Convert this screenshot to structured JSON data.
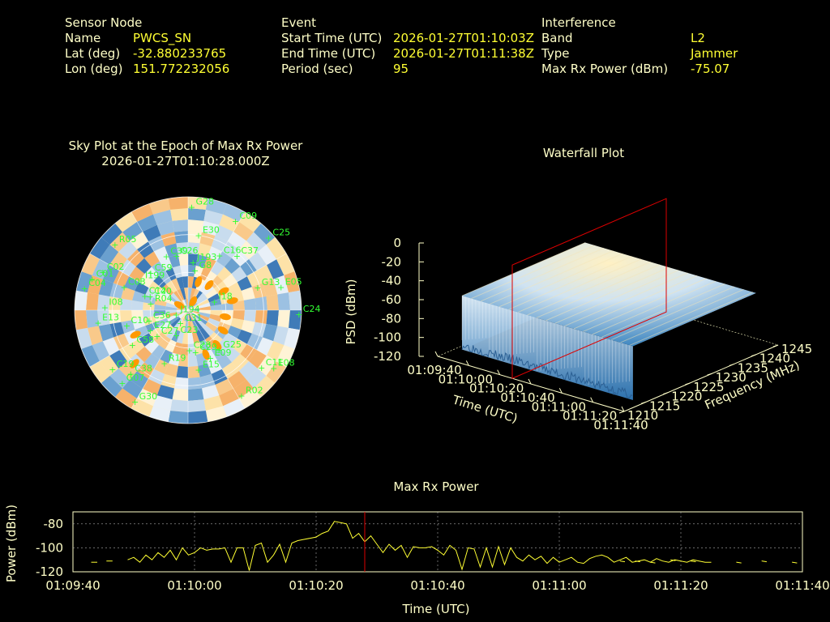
{
  "header": {
    "sensor": {
      "title": "Sensor Node",
      "name_label": "Name",
      "name": "PWCS_SN",
      "lat_label": "Lat (deg)",
      "lat": "-32.880233765",
      "lon_label": "Lon (deg)",
      "lon": "151.772232056"
    },
    "event": {
      "title": "Event",
      "start_label": "Start Time (UTC)",
      "start": "2026-01-27T01:10:03Z",
      "end_label": "End Time (UTC)",
      "end": "2026-01-27T01:11:38Z",
      "period_label": "Period (sec)",
      "period": "95"
    },
    "interference": {
      "title": "Interference",
      "band_label": "Band",
      "band": "L2",
      "type_label": "Type",
      "type": "Jammer",
      "power_label": "Max Rx Power (dBm)",
      "power": "-75.07"
    }
  },
  "colors": {
    "text": "#ffffc8",
    "value": "#ffff33",
    "satellite": "#33ff33",
    "jammer": "#ff9900",
    "marker": "#dd0000",
    "trace": "#ffff33"
  },
  "chart_data": [
    {
      "type": "scatter",
      "title": "Sky Plot at the Epoch of Max Rx Power",
      "subtitle": "2026-01-27T01:10:28.000Z",
      "satellites": [
        {
          "id": "G28",
          "az": 2,
          "el": 8
        },
        {
          "id": "C09",
          "az": 28,
          "el": 10
        },
        {
          "id": "C25",
          "az": 48,
          "el": 4
        },
        {
          "id": "E30",
          "az": 8,
          "el": 30
        },
        {
          "id": "C16",
          "az": 30,
          "el": 40
        },
        {
          "id": "C37",
          "az": 42,
          "el": 32
        },
        {
          "id": "G13",
          "az": 72,
          "el": 32
        },
        {
          "id": "E05",
          "az": 76,
          "el": 14
        },
        {
          "id": "C24",
          "az": 92,
          "el": 2
        },
        {
          "id": "C26",
          "az": 348,
          "el": 46
        },
        {
          "id": "C39",
          "az": 338,
          "el": 44
        },
        {
          "id": "C59",
          "az": 315,
          "el": 48
        },
        {
          "id": "J193",
          "az": 6,
          "el": 52
        },
        {
          "id": "G8",
          "az": 10,
          "el": 58
        },
        {
          "id": "I18",
          "az": 72,
          "el": 68
        },
        {
          "id": "J194",
          "az": 250,
          "el": 80
        },
        {
          "id": "C31",
          "az": 210,
          "el": 78
        },
        {
          "id": "C36",
          "az": 255,
          "el": 58
        },
        {
          "id": "C40",
          "az": 290,
          "el": 58
        },
        {
          "id": "R04",
          "az": 280,
          "el": 60
        },
        {
          "id": "C12",
          "az": 288,
          "el": 54
        },
        {
          "id": "R05",
          "az": 312,
          "el": 12
        },
        {
          "id": "C03",
          "az": 290,
          "el": 36
        },
        {
          "id": "C01",
          "az": 288,
          "el": 10
        },
        {
          "id": "C02",
          "az": 294,
          "el": 16
        },
        {
          "id": "C04",
          "az": 282,
          "el": 6
        },
        {
          "id": "I199",
          "az": 302,
          "el": 46
        },
        {
          "id": "I08",
          "az": 272,
          "el": 24
        },
        {
          "id": "E13",
          "az": 262,
          "el": 18
        },
        {
          "id": "C10",
          "az": 256,
          "el": 40
        },
        {
          "id": "E27",
          "az": 242,
          "el": 56
        },
        {
          "id": "C27",
          "az": 230,
          "el": 58
        },
        {
          "id": "C23",
          "az": 205,
          "el": 68
        },
        {
          "id": "R19",
          "az": 204,
          "el": 44
        },
        {
          "id": "C58",
          "az": 238,
          "el": 38
        },
        {
          "id": "C38",
          "az": 222,
          "el": 22
        },
        {
          "id": "C19",
          "az": 232,
          "el": 14
        },
        {
          "id": "G07",
          "az": 222,
          "el": 12
        },
        {
          "id": "G30",
          "az": 210,
          "el": 6
        },
        {
          "id": "C28",
          "az": 178,
          "el": 58
        },
        {
          "id": "C29",
          "az": 170,
          "el": 56
        },
        {
          "id": "E15",
          "az": 170,
          "el": 42
        },
        {
          "id": "E09",
          "az": 155,
          "el": 48
        },
        {
          "id": "G25",
          "az": 142,
          "el": 50
        },
        {
          "id": "C11",
          "az": 128,
          "el": 16
        },
        {
          "id": "R02",
          "az": 148,
          "el": 10
        },
        {
          "id": "E08",
          "az": 124,
          "el": 8
        }
      ],
      "jammer_track": [
        {
          "az": 20,
          "el": 66
        },
        {
          "az": 40,
          "el": 64
        },
        {
          "az": 62,
          "el": 58
        },
        {
          "az": 78,
          "el": 54
        },
        {
          "az": 100,
          "el": 60
        },
        {
          "az": 120,
          "el": 58
        },
        {
          "az": 140,
          "el": 54
        },
        {
          "az": 158,
          "el": 52
        },
        {
          "az": 225,
          "el": 30
        },
        {
          "az": 245,
          "el": 44
        },
        {
          "az": 300,
          "el": 82
        },
        {
          "az": 30,
          "el": 82
        }
      ],
      "rings_el": [
        0,
        30,
        60,
        90
      ]
    },
    {
      "type": "heatmap",
      "title": "Waterfall Plot",
      "xlabel": "Time (UTC)",
      "ylabel": "Frequency (MHz)",
      "zlabel": "PSD (dBm)",
      "time_ticks": [
        "01:09:40",
        "01:10:00",
        "01:10:20",
        "01:10:40",
        "01:11:00",
        "01:11:20",
        "01:11:40"
      ],
      "freq_ticks": [
        "1210",
        "1215",
        "1220",
        "1225",
        "1230",
        "1235",
        "1240",
        "1245"
      ],
      "psd_ticks": [
        "0",
        "-20",
        "-40",
        "-60",
        "-80",
        "-100",
        "-120"
      ],
      "zlim": [
        -120,
        0
      ],
      "band_start_time": "01:09:50",
      "band_end_time": "01:11:40",
      "band_low_mhz": 1212,
      "band_high_mhz": 1240,
      "psd_level_dbm": -55,
      "marker_time": "01:10:28"
    },
    {
      "type": "line",
      "title": "Max Rx Power",
      "xlabel": "Time (UTC)",
      "ylabel": "Power (dBm)",
      "x_ticks": [
        "01:09:40",
        "01:10:00",
        "01:10:20",
        "01:10:40",
        "01:11:00",
        "01:11:20",
        "01:11:40"
      ],
      "y_ticks": [
        "-80",
        "-100",
        "-120"
      ],
      "xlim_sec": [
        0,
        120
      ],
      "ylim": [
        -120,
        -70
      ],
      "grid": true,
      "marker_sec": 48,
      "series": [
        {
          "x": [
            3,
            4
          ],
          "y": [
            -112,
            -112
          ]
        },
        {
          "x": [
            5.5,
            6.5
          ],
          "y": [
            -111,
            -111
          ]
        },
        {
          "x": [
            9,
            10,
            11,
            12,
            13,
            14,
            15,
            16,
            17,
            18,
            19,
            20,
            21,
            22,
            23,
            24,
            25,
            26,
            27,
            28,
            29,
            30,
            31,
            32,
            33,
            34,
            35,
            36,
            37,
            38,
            39,
            40,
            41,
            42,
            43,
            44,
            45,
            46,
            47,
            48,
            49,
            50,
            51,
            52,
            53,
            54,
            55,
            56,
            57,
            58,
            59,
            60,
            61,
            62,
            63,
            64,
            65,
            66,
            67,
            68,
            69,
            70,
            71,
            72,
            73,
            74,
            75,
            76,
            77,
            78,
            79,
            80,
            81,
            82,
            83,
            84,
            85,
            86,
            87,
            88,
            89,
            90,
            91,
            92,
            93,
            94,
            95,
            96,
            97,
            98,
            99,
            100,
            101,
            102,
            103,
            104,
            105
          ],
          "y": [
            -110,
            -108,
            -112,
            -106,
            -110,
            -104,
            -108,
            -102,
            -110,
            -100,
            -106,
            -104,
            -100,
            -102,
            -101,
            -101,
            -100,
            -112,
            -100,
            -100,
            -119,
            -98,
            -96,
            -112,
            -106,
            -97,
            -112,
            -96,
            -94,
            -93,
            -92,
            -91,
            -88,
            -86,
            -78,
            -79,
            -80,
            -92,
            -88,
            -95,
            -90,
            -97,
            -104,
            -97,
            -102,
            -98,
            -108,
            -99,
            -100,
            -100,
            -99,
            -102,
            -106,
            -98,
            -102,
            -118,
            -100,
            -101,
            -116,
            -100,
            -116,
            -99,
            -114,
            -100,
            -108,
            -111,
            -106,
            -110,
            -107,
            -113,
            -108,
            -112,
            -110,
            -108,
            -112,
            -113,
            -109,
            -107,
            -106,
            -108,
            -112,
            -110,
            -108,
            -112,
            -111,
            -110,
            -112,
            -109,
            -111,
            -112,
            -110,
            -111,
            -112,
            -110,
            -111,
            -112,
            -112
          ]
        }
      ]
    }
  ]
}
